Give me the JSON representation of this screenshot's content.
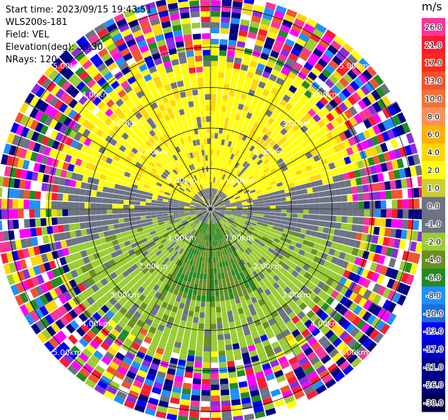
{
  "info": {
    "start_time": "Start time: 2023/09/15 19:43:51",
    "instrument": "WLS200s-181",
    "field": "Field: VEL",
    "elevation": "Elevation(deg): 35.30",
    "nrays": "NRays: 120"
  },
  "colorbar": {
    "unit": "m/s",
    "tick_labels": [
      "26.0",
      "21.0",
      "17.0",
      "13.0",
      "10.0",
      "8.0",
      "6.0",
      "4.0",
      "2.0",
      "1.0",
      "0.0",
      "-1.0",
      "-2.0",
      "-4.0",
      "-6.0",
      "-8.0",
      "-10.0",
      "-13.0",
      "-17.0",
      "-21.0",
      "-26.0",
      "-30.0"
    ],
    "colors": [
      "#ff3399",
      "#ff1a33",
      "#ff2a1a",
      "#f2542d",
      "#f5703a",
      "#f7935a",
      "#ffb000",
      "#ffd700",
      "#ffff00",
      "#cccc33",
      "#6c7384",
      "#6c7384",
      "#9acd32",
      "#6b8e23",
      "#228b22",
      "#1e90ff",
      "#1c6fd6",
      "#0000ff",
      "#0000cd",
      "#00008b",
      "#000080",
      "#00004a"
    ]
  },
  "chart_data": {
    "type": "polar-ppi",
    "field": "VEL",
    "unit": "m/s",
    "nrays": 120,
    "range_rings_km": [
      1.0,
      2.0,
      3.0,
      4.0,
      5.0
    ],
    "range_ring_labels": [
      "1.00km",
      "2.00km",
      "3.00km",
      "4.00km",
      "5.00km"
    ],
    "spoke_angles_deg": [
      0,
      30,
      60,
      90,
      120,
      150,
      180,
      210,
      240,
      270,
      300,
      330
    ],
    "max_range_km": 5.3,
    "velocity_min": -30.0,
    "velocity_max": 26.0,
    "pattern": {
      "north_sector_near": "positive (yellow, ~2 to 4 m/s)",
      "south_sector_near": "negative (green, ~-2 to -6 m/s)",
      "east_west_near": "near zero (gray)",
      "beyond_4km": "noise (mixed colors)"
    }
  },
  "colors": {
    "ring_line": "#000000",
    "noise_palette": [
      "#ff3399",
      "#ff1a33",
      "#f2542d",
      "#ffd700",
      "#ffff00",
      "#9acd32",
      "#228b22",
      "#1e90ff",
      "#0000ff",
      "#00008b",
      "#000080",
      "#6c7384",
      "#ff00ff",
      "#8a2be2",
      "#ffffff"
    ]
  }
}
